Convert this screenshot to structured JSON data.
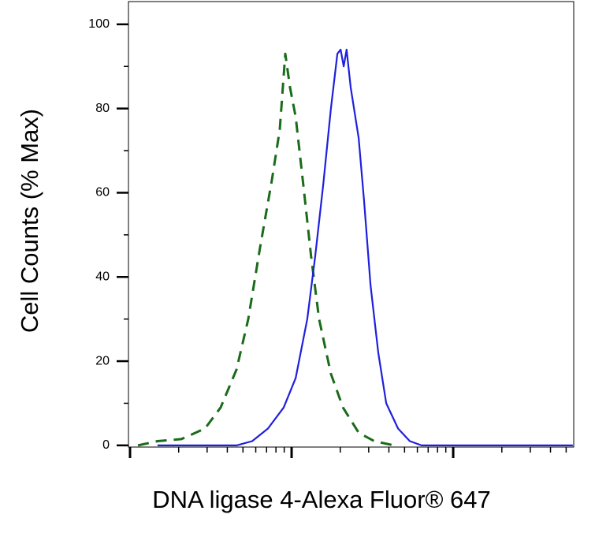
{
  "chart_data": {
    "type": "line",
    "xlabel": "DNA ligase 4-Alexa Fluor® 647",
    "ylabel": "Cell Counts (% Max)",
    "xscale": "log",
    "xlim": [
      0.978,
      557
    ],
    "xticks": [
      1,
      10,
      100
    ],
    "xminor_ticks": [
      2,
      3,
      4,
      5,
      6,
      7,
      8,
      9,
      20,
      30,
      40,
      50,
      60,
      70,
      80,
      90,
      200,
      300,
      400,
      500
    ],
    "ylim": [
      -0.4,
      105.4
    ],
    "yticks": [
      0,
      20,
      40,
      60,
      80,
      100
    ],
    "yminor_ticks": [
      10,
      30,
      50,
      70,
      90
    ],
    "series": [
      {
        "color": "#1a6b1a",
        "line_style": "dashed",
        "x": [
          1.12,
          1.48,
          2.08,
          2.91,
          3.64,
          4.56,
          5.39,
          6.38,
          7.55,
          8.45,
          9.14,
          9.78,
          10.6,
          11.8,
          13.2,
          14.8,
          17.5,
          20.8,
          26.0,
          32.5,
          43.1
        ],
        "values": [
          0,
          1,
          1.5,
          4,
          9,
          18,
          30,
          47,
          63,
          75,
          93,
          85,
          78,
          62,
          45,
          30,
          17,
          9,
          3,
          1,
          0
        ]
      },
      {
        "color": "#1f1fdf",
        "line_style": "solid",
        "x": [
          1.48,
          4.56,
          5.7,
          7.14,
          8.94,
          10.6,
          12.5,
          14.0,
          15.7,
          17.5,
          19.2,
          20.1,
          21.0,
          21.9,
          23.2,
          26.0,
          28.1,
          30.8,
          34.4,
          38.5,
          45.6,
          53.9,
          63.8,
          550
        ],
        "values": [
          0,
          0,
          1,
          4,
          9,
          16,
          30,
          45,
          62,
          80,
          93,
          94,
          90,
          94,
          85,
          73,
          58,
          38,
          22,
          10,
          4,
          1,
          0,
          0
        ]
      }
    ]
  }
}
